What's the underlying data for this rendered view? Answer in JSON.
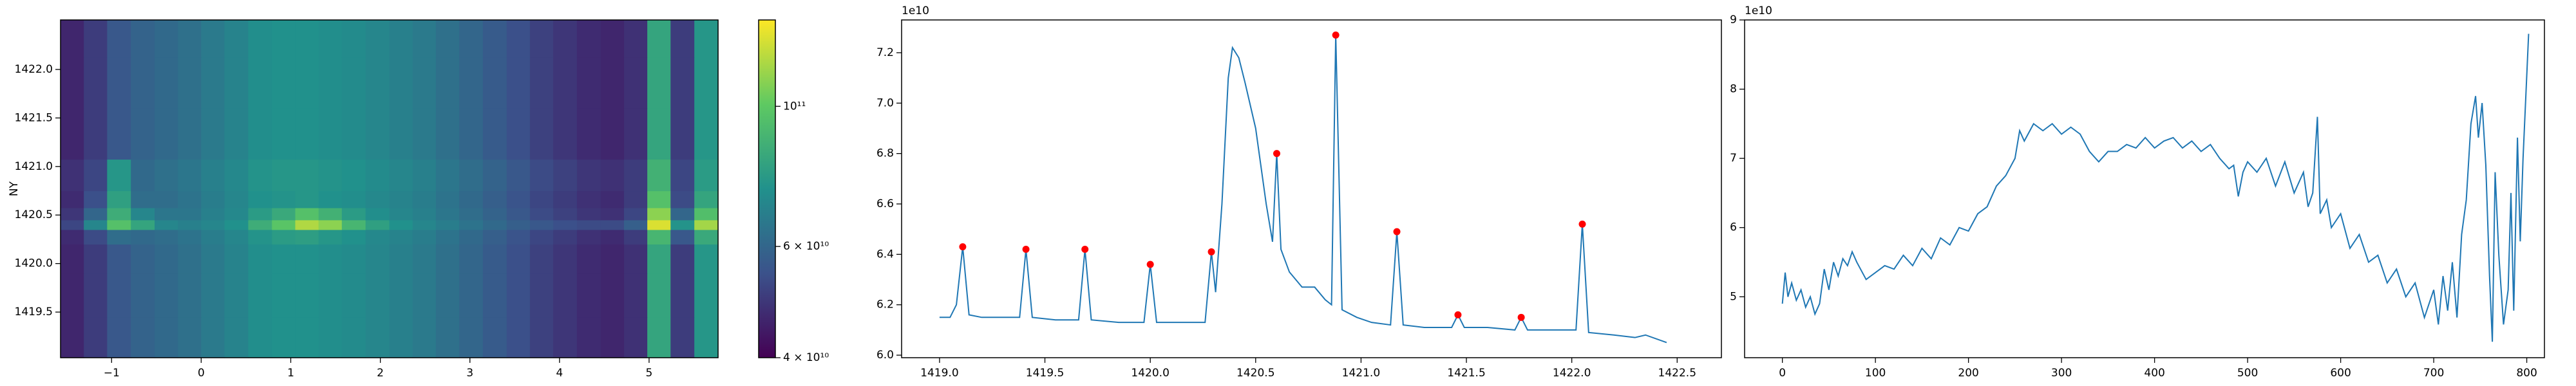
{
  "chart_data": [
    {
      "type": "heatmap",
      "colormap": "viridis",
      "ylabel": "NY",
      "x": [
        -1.44,
        -1.18,
        -0.92,
        -0.65,
        -0.39,
        -0.13,
        0.13,
        0.39,
        0.66,
        0.92,
        1.18,
        1.44,
        1.7,
        1.97,
        2.23,
        2.49,
        2.75,
        3.01,
        3.28,
        3.54,
        3.8,
        4.06,
        4.33,
        4.59,
        4.85,
        5.11,
        5.37,
        5.64
      ],
      "y": [
        1419.2,
        1419.7,
        1420.1,
        1420.3,
        1420.4,
        1420.5,
        1420.65,
        1420.85,
        1421.3,
        1421.9,
        1422.35
      ],
      "values": [
        [
          46000000000.0,
          50000000000.0,
          56000000000.0,
          59000000000.0,
          61000000000.0,
          63000000000.0,
          66000000000.0,
          69000000000.0,
          73000000000.0,
          74000000000.0,
          74000000000.0,
          73000000000.0,
          72000000000.0,
          70000000000.0,
          68000000000.0,
          66000000000.0,
          63000000000.0,
          60000000000.0,
          57000000000.0,
          54000000000.0,
          51000000000.0,
          49000000000.0,
          47000000000.0,
          46000000000.0,
          48000000000.0,
          82000000000.0,
          50000000000.0,
          76000000000.0
        ],
        [
          46000000000.0,
          50000000000.0,
          56000000000.0,
          59000000000.0,
          61000000000.0,
          63000000000.0,
          66000000000.0,
          69000000000.0,
          73000000000.0,
          74000000000.0,
          74000000000.0,
          73000000000.0,
          72000000000.0,
          70000000000.0,
          68000000000.0,
          66000000000.0,
          63000000000.0,
          60000000000.0,
          57000000000.0,
          54000000000.0,
          51000000000.0,
          49000000000.0,
          47000000000.0,
          46000000000.0,
          48000000000.0,
          82000000000.0,
          50000000000.0,
          76000000000.0
        ],
        [
          46000000000.0,
          50000000000.0,
          56000000000.0,
          59000000000.0,
          61000000000.0,
          63000000000.0,
          66000000000.0,
          69000000000.0,
          73000000000.0,
          74000000000.0,
          74000000000.0,
          73000000000.0,
          72000000000.0,
          70000000000.0,
          68000000000.0,
          66000000000.0,
          63000000000.0,
          60000000000.0,
          57000000000.0,
          54000000000.0,
          51000000000.0,
          49000000000.0,
          47000000000.0,
          46000000000.0,
          48000000000.0,
          82000000000.0,
          50000000000.0,
          76000000000.0
        ],
        [
          47000000000.0,
          53000000000.0,
          62000000000.0,
          61000000000.0,
          62000000000.0,
          64000000000.0,
          67000000000.0,
          70000000000.0,
          75000000000.0,
          78000000000.0,
          79000000000.0,
          76000000000.0,
          74000000000.0,
          71000000000.0,
          69000000000.0,
          67000000000.0,
          64000000000.0,
          61000000000.0,
          58000000000.0,
          55000000000.0,
          52000000000.0,
          50000000000.0,
          48000000000.0,
          47000000000.0,
          50000000000.0,
          90000000000.0,
          56000000000.0,
          84000000000.0
        ],
        [
          52000000000.0,
          70000000000.0,
          96000000000.0,
          82000000000.0,
          70000000000.0,
          68000000000.0,
          70000000000.0,
          74000000000.0,
          86000000000.0,
          98000000000.0,
          118000000000.0,
          110000000000.0,
          90000000000.0,
          80000000000.0,
          74000000000.0,
          70000000000.0,
          67000000000.0,
          64000000000.0,
          61000000000.0,
          58000000000.0,
          56000000000.0,
          54000000000.0,
          53000000000.0,
          53000000000.0,
          58000000000.0,
          128000000000.0,
          75000000000.0,
          115000000000.0
        ],
        [
          49000000000.0,
          60000000000.0,
          86000000000.0,
          70000000000.0,
          65000000000.0,
          65000000000.0,
          68000000000.0,
          71000000000.0,
          78000000000.0,
          84000000000.0,
          96000000000.0,
          88000000000.0,
          78000000000.0,
          73000000000.0,
          70000000000.0,
          68000000000.0,
          65000000000.0,
          62000000000.0,
          59000000000.0,
          56000000000.0,
          53000000000.0,
          51000000000.0,
          49000000000.0,
          48000000000.0,
          52000000000.0,
          110000000000.0,
          60000000000.0,
          95000000000.0
        ],
        [
          47000000000.0,
          54000000000.0,
          80000000000.0,
          62000000000.0,
          62000000000.0,
          64000000000.0,
          67000000000.0,
          70000000000.0,
          74000000000.0,
          75000000000.0,
          76000000000.0,
          74000000000.0,
          73000000000.0,
          71000000000.0,
          69000000000.0,
          67000000000.0,
          64000000000.0,
          61000000000.0,
          58000000000.0,
          55000000000.0,
          52000000000.0,
          50000000000.0,
          48000000000.0,
          47000000000.0,
          50000000000.0,
          96000000000.0,
          53000000000.0,
          82000000000.0
        ],
        [
          48000000000.0,
          52000000000.0,
          76000000000.0,
          61000000000.0,
          63000000000.0,
          65000000000.0,
          68000000000.0,
          71000000000.0,
          75000000000.0,
          76000000000.0,
          76000000000.0,
          75000000000.0,
          74000000000.0,
          72000000000.0,
          70000000000.0,
          68000000000.0,
          65000000000.0,
          62000000000.0,
          59000000000.0,
          56000000000.0,
          53000000000.0,
          51000000000.0,
          49000000000.0,
          48000000000.0,
          50000000000.0,
          88000000000.0,
          52000000000.0,
          78000000000.0
        ],
        [
          46000000000.0,
          50000000000.0,
          56000000000.0,
          59000000000.0,
          61000000000.0,
          63000000000.0,
          66000000000.0,
          69000000000.0,
          73000000000.0,
          74000000000.0,
          74000000000.0,
          73000000000.0,
          72000000000.0,
          70000000000.0,
          68000000000.0,
          66000000000.0,
          63000000000.0,
          60000000000.0,
          57000000000.0,
          54000000000.0,
          51000000000.0,
          49000000000.0,
          47000000000.0,
          46000000000.0,
          48000000000.0,
          82000000000.0,
          50000000000.0,
          76000000000.0
        ],
        [
          46000000000.0,
          50000000000.0,
          56000000000.0,
          59000000000.0,
          61000000000.0,
          63000000000.0,
          66000000000.0,
          69000000000.0,
          73000000000.0,
          74000000000.0,
          74000000000.0,
          73000000000.0,
          72000000000.0,
          70000000000.0,
          68000000000.0,
          66000000000.0,
          63000000000.0,
          60000000000.0,
          57000000000.0,
          54000000000.0,
          51000000000.0,
          49000000000.0,
          47000000000.0,
          46000000000.0,
          48000000000.0,
          82000000000.0,
          50000000000.0,
          76000000000.0
        ],
        [
          46000000000.0,
          50000000000.0,
          56000000000.0,
          59000000000.0,
          61000000000.0,
          63000000000.0,
          66000000000.0,
          69000000000.0,
          73000000000.0,
          74000000000.0,
          74000000000.0,
          73000000000.0,
          72000000000.0,
          70000000000.0,
          68000000000.0,
          66000000000.0,
          63000000000.0,
          60000000000.0,
          57000000000.0,
          54000000000.0,
          51000000000.0,
          49000000000.0,
          47000000000.0,
          46000000000.0,
          48000000000.0,
          82000000000.0,
          50000000000.0,
          76000000000.0
        ]
      ],
      "xlim": [
        -1.57,
        5.77
      ],
      "xticks": [
        {
          "value": -1,
          "label": "−1"
        },
        0,
        1,
        2,
        3,
        4,
        5
      ],
      "ylim": [
        1419.03,
        1422.51
      ],
      "yticks": [
        1419.5,
        {
          "value": 1420,
          "label": "1420.0"
        },
        1420.5,
        {
          "value": 1421,
          "label": "1421.0"
        },
        1421.5,
        {
          "value": 1422,
          "label": "1422.0"
        }
      ],
      "colorbar": {
        "scale": "log",
        "lim": [
          40000000000.0,
          137000000000.0
        ],
        "ticks": [
          {
            "value": 40000000000.0,
            "label": "4 × 10¹⁰"
          },
          {
            "value": 60000000000.0,
            "label": "6 × 10¹⁰"
          },
          {
            "value": 100000000000.0,
            "label": "10¹¹"
          }
        ]
      }
    },
    {
      "type": "line",
      "offset_label": "1e10",
      "series": [
        {
          "color": "#1f77b4",
          "x": [
            1419.0,
            1419.05,
            1419.08,
            1419.11,
            1419.14,
            1419.2,
            1419.3,
            1419.38,
            1419.41,
            1419.44,
            1419.55,
            1419.66,
            1419.69,
            1419.72,
            1419.85,
            1419.97,
            1420.0,
            1420.03,
            1420.15,
            1420.26,
            1420.29,
            1420.31,
            1420.34,
            1420.37,
            1420.39,
            1420.42,
            1420.45,
            1420.5,
            1420.55,
            1420.58,
            1420.6,
            1420.62,
            1420.66,
            1420.72,
            1420.78,
            1420.83,
            1420.86,
            1420.88,
            1420.91,
            1420.98,
            1421.05,
            1421.14,
            1421.17,
            1421.2,
            1421.3,
            1421.43,
            1421.46,
            1421.49,
            1421.6,
            1421.73,
            1421.76,
            1421.79,
            1421.9,
            1422.02,
            1422.05,
            1422.08,
            1422.2,
            1422.3,
            1422.35,
            1422.45
          ],
          "values": [
            6.15,
            6.15,
            6.2,
            6.43,
            6.16,
            6.15,
            6.15,
            6.15,
            6.42,
            6.15,
            6.14,
            6.14,
            6.42,
            6.14,
            6.13,
            6.13,
            6.36,
            6.13,
            6.13,
            6.13,
            6.41,
            6.25,
            6.6,
            7.1,
            7.22,
            7.18,
            7.08,
            6.9,
            6.6,
            6.45,
            6.8,
            6.42,
            6.33,
            6.27,
            6.27,
            6.22,
            6.2,
            7.27,
            6.18,
            6.15,
            6.13,
            6.12,
            6.49,
            6.12,
            6.11,
            6.11,
            6.16,
            6.11,
            6.11,
            6.1,
            6.15,
            6.1,
            6.1,
            6.1,
            6.52,
            6.09,
            6.08,
            6.07,
            6.08,
            6.05
          ]
        },
        {
          "kind": "scatter",
          "color": "#ff0000",
          "x": [
            1419.11,
            1419.41,
            1419.69,
            1420.0,
            1420.29,
            1420.6,
            1420.88,
            1421.17,
            1421.46,
            1421.76,
            1422.05
          ],
          "values": [
            6.43,
            6.42,
            6.42,
            6.36,
            6.41,
            6.8,
            7.27,
            6.49,
            6.16,
            6.15,
            6.52
          ]
        }
      ],
      "xlim": [
        1418.82,
        1422.71
      ],
      "xticks": [
        {
          "value": 1419,
          "label": "1419.0"
        },
        1419.5,
        {
          "value": 1420,
          "label": "1420.0"
        },
        1420.5,
        {
          "value": 1421,
          "label": "1421.0"
        },
        1421.5,
        {
          "value": 1422,
          "label": "1422.0"
        },
        1422.5
      ],
      "ylim": [
        5.99,
        7.33
      ],
      "yticks": [
        {
          "value": 6,
          "label": "6.0"
        },
        6.2,
        6.4,
        6.6,
        6.8,
        {
          "value": 7,
          "label": "7.0"
        },
        7.2
      ]
    },
    {
      "type": "line",
      "offset_label": "1e10",
      "x": [
        0,
        3,
        6,
        10,
        15,
        20,
        25,
        30,
        35,
        40,
        45,
        50,
        55,
        60,
        65,
        70,
        75,
        80,
        90,
        100,
        110,
        120,
        130,
        140,
        150,
        160,
        170,
        180,
        190,
        200,
        210,
        220,
        230,
        240,
        250,
        255,
        260,
        270,
        280,
        290,
        300,
        310,
        320,
        330,
        340,
        350,
        360,
        370,
        380,
        390,
        400,
        410,
        420,
        430,
        440,
        450,
        460,
        470,
        480,
        485,
        490,
        495,
        500,
        510,
        520,
        530,
        540,
        550,
        560,
        565,
        570,
        575,
        578,
        585,
        590,
        600,
        610,
        620,
        630,
        640,
        650,
        660,
        670,
        680,
        690,
        700,
        705,
        710,
        715,
        720,
        725,
        730,
        735,
        740,
        745,
        748,
        752,
        756,
        760,
        763,
        766,
        770,
        775,
        780,
        783,
        786,
        790,
        793,
        796,
        800,
        802
      ],
      "series": [
        {
          "color": "#1f77b4",
          "values": [
            4.9,
            5.35,
            5.0,
            5.2,
            4.95,
            5.1,
            4.85,
            5.0,
            4.75,
            4.9,
            5.4,
            5.1,
            5.5,
            5.3,
            5.55,
            5.45,
            5.65,
            5.5,
            5.25,
            5.35,
            5.45,
            5.4,
            5.6,
            5.45,
            5.7,
            5.55,
            5.85,
            5.75,
            6.0,
            5.95,
            6.2,
            6.3,
            6.6,
            6.75,
            7.0,
            7.4,
            7.25,
            7.5,
            7.4,
            7.5,
            7.35,
            7.45,
            7.35,
            7.1,
            6.95,
            7.1,
            7.1,
            7.2,
            7.15,
            7.3,
            7.15,
            7.25,
            7.3,
            7.15,
            7.25,
            7.1,
            7.2,
            7.0,
            6.85,
            6.9,
            6.45,
            6.8,
            6.95,
            6.8,
            7.0,
            6.6,
            6.95,
            6.5,
            6.8,
            6.3,
            6.5,
            7.6,
            6.2,
            6.4,
            6.0,
            6.2,
            5.7,
            5.9,
            5.5,
            5.6,
            5.2,
            5.4,
            5.0,
            5.2,
            4.7,
            5.1,
            4.6,
            5.3,
            4.8,
            5.5,
            4.7,
            5.9,
            6.4,
            7.5,
            7.9,
            7.3,
            7.8,
            6.9,
            5.3,
            4.35,
            6.8,
            5.6,
            4.6,
            5.1,
            6.5,
            4.8,
            7.3,
            5.8,
            7.0,
            8.2,
            8.8
          ]
        }
      ],
      "xlim": [
        -40.6,
        819
      ],
      "xticks": [
        0,
        100,
        200,
        300,
        400,
        500,
        600,
        700,
        800
      ],
      "ylim": [
        4.12,
        9.0
      ],
      "yticks": [
        5,
        6,
        7,
        8,
        9
      ]
    }
  ]
}
